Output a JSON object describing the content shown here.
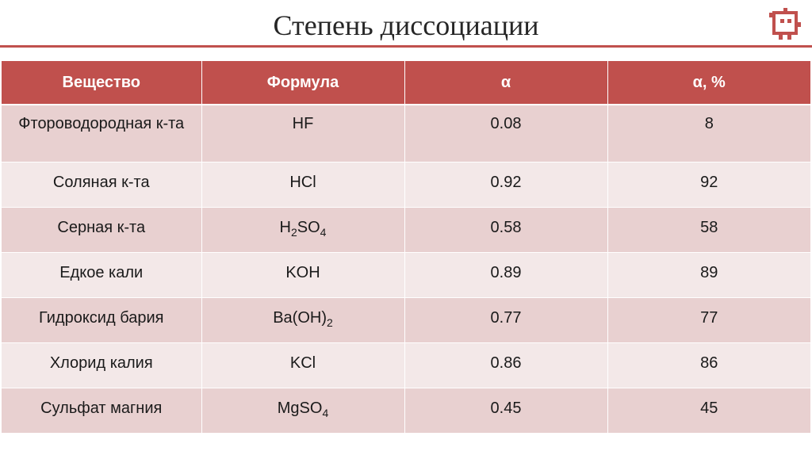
{
  "title": "Степень диссоциации",
  "table": {
    "headers": [
      "Вещество",
      "Формула",
      "α",
      "α, %"
    ],
    "rows": [
      {
        "substance": "Фтороводородная к-та",
        "formula": [
          {
            "t": "HF"
          }
        ],
        "alpha": "0.08",
        "percent": "8"
      },
      {
        "substance": "Соляная к-та",
        "formula": [
          {
            "t": "HCl"
          }
        ],
        "alpha": "0.92",
        "percent": "92"
      },
      {
        "substance": "Серная к-та",
        "formula": [
          {
            "t": "H"
          },
          {
            "t": "2",
            "sub": true
          },
          {
            "t": "SO"
          },
          {
            "t": "4",
            "sub": true
          }
        ],
        "alpha": "0.58",
        "percent": "58"
      },
      {
        "substance": "Едкое кали",
        "formula": [
          {
            "t": "KOH"
          }
        ],
        "alpha": "0.89",
        "percent": "89"
      },
      {
        "substance": "Гидроксид бария",
        "formula": [
          {
            "t": "Ba(OH)"
          },
          {
            "t": "2",
            "sub": true
          }
        ],
        "alpha": "0.77",
        "percent": "77"
      },
      {
        "substance": "Хлорид калия",
        "formula": [
          {
            "t": "KCl"
          }
        ],
        "alpha": "0.86",
        "percent": "86"
      },
      {
        "substance": "Сульфат магния",
        "formula": [
          {
            "t": "MgSO"
          },
          {
            "t": "4",
            "sub": true
          }
        ],
        "alpha": "0.45",
        "percent": "45"
      }
    ]
  },
  "colors": {
    "accent": "#c0504d",
    "row_dark": "#e8d0d0",
    "row_light": "#f3e8e8"
  },
  "logo_icon": "pixel-robot-icon"
}
